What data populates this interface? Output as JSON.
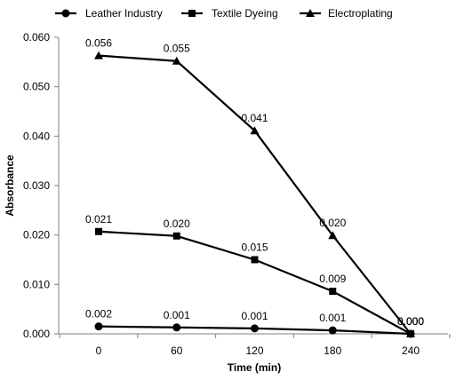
{
  "chart_data": {
    "type": "line",
    "title": "",
    "xlabel": "Time (min)",
    "ylabel": "Absorbance",
    "x": [
      0,
      60,
      120,
      180,
      240
    ],
    "x_tick_labels": [
      "0",
      "60",
      "120",
      "180",
      "240"
    ],
    "ylim": [
      0,
      0.06
    ],
    "y_ticks": [
      0,
      0.01,
      0.02,
      0.03,
      0.04,
      0.05,
      0.06
    ],
    "y_tick_labels": [
      "0.000",
      "0.010",
      "0.020",
      "0.030",
      "0.040",
      "0.050",
      "0.060"
    ],
    "grid": false,
    "legend_position": "top",
    "series": [
      {
        "name": "Leather Industry",
        "marker": "circle",
        "color": "#000000",
        "values": [
          0.0015,
          0.0013,
          0.0011,
          0.0007,
          0.0
        ],
        "data_labels": [
          "0.002",
          "0.001",
          "0.001",
          "0.001",
          "0.000"
        ]
      },
      {
        "name": "Textile Dyeing",
        "marker": "square",
        "color": "#000000",
        "values": [
          0.0207,
          0.0198,
          0.015,
          0.0086,
          0.0
        ],
        "data_labels": [
          "0.021",
          "0.020",
          "0.015",
          "0.009",
          "0.000"
        ]
      },
      {
        "name": "Electroplating",
        "marker": "triangle",
        "color": "#000000",
        "values": [
          0.0563,
          0.0552,
          0.0411,
          0.0199,
          0.0
        ],
        "data_labels": [
          "0.056",
          "0.055",
          "0.041",
          "0.020",
          "0.000"
        ]
      }
    ]
  }
}
